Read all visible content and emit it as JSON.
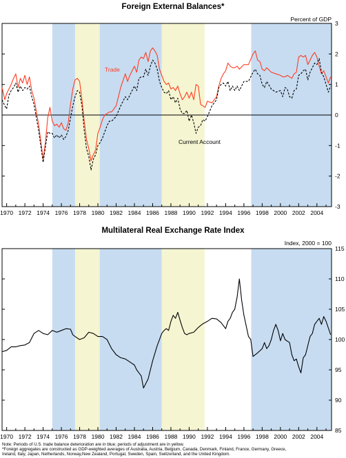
{
  "colors": {
    "blue_shade": "#c7dcf1",
    "yellow_shade": "#f5f5d2",
    "trade": "#ff3b1f",
    "current_account": "#000000",
    "index": "#000000"
  },
  "shading": [
    {
      "start": 1975.0,
      "end": 1977.5,
      "kind": "blue"
    },
    {
      "start": 1977.5,
      "end": 1980.2,
      "kind": "yellow"
    },
    {
      "start": 1980.2,
      "end": 1987.0,
      "kind": "blue"
    },
    {
      "start": 1987.0,
      "end": 1991.7,
      "kind": "yellow"
    },
    {
      "start": 1996.8,
      "end": 2005.6,
      "kind": "blue"
    }
  ],
  "chart_data": [
    {
      "type": "line",
      "title": "Foreign External Balances*",
      "ylabel": "Percent of GDP",
      "xlim": [
        1969.5,
        2005.6
      ],
      "ylim": [
        -3,
        3
      ],
      "yticks": [
        "-3",
        "-2",
        "-1",
        "0",
        "1",
        "2",
        "3"
      ],
      "xticks": [
        "1970",
        "1972",
        "1974",
        "1976",
        "1978",
        "1980",
        "1982",
        "1984",
        "1986",
        "1988",
        "1990",
        "1992",
        "1994",
        "1996",
        "1998",
        "2000",
        "2002",
        "2004"
      ],
      "series": [
        {
          "name": "Trade",
          "x": [
            1969.5,
            1969.8,
            1970.0,
            1970.25,
            1970.5,
            1970.75,
            1971.0,
            1971.25,
            1971.5,
            1971.75,
            1972.0,
            1972.25,
            1972.5,
            1972.75,
            1973.0,
            1973.5,
            1974.0,
            1974.25,
            1974.5,
            1974.75,
            1975.0,
            1975.25,
            1975.5,
            1975.75,
            1976.0,
            1976.25,
            1976.5,
            1976.75,
            1977.0,
            1977.25,
            1977.5,
            1977.75,
            1978.0,
            1978.25,
            1978.5,
            1978.75,
            1979.0,
            1979.25,
            1979.5,
            1979.75,
            1980.0,
            1980.25,
            1980.5,
            1980.75,
            1981.0,
            1981.25,
            1981.5,
            1982.0,
            1982.5,
            1983.0,
            1983.25,
            1983.5,
            1984.0,
            1984.25,
            1984.5,
            1984.75,
            1985.0,
            1985.25,
            1985.5,
            1985.75,
            1986.0,
            1986.25,
            1986.5,
            1986.75,
            1987.0,
            1987.25,
            1987.5,
            1987.75,
            1988.0,
            1988.25,
            1988.5,
            1988.75,
            1989.0,
            1989.25,
            1989.5,
            1989.75,
            1990.0,
            1990.25,
            1990.5,
            1990.75,
            1991.0,
            1991.25,
            1991.5,
            1991.75,
            1992.0,
            1992.5,
            1993.0,
            1993.25,
            1993.5,
            1993.75,
            1994.0,
            1994.25,
            1994.5,
            1994.75,
            1995.0,
            1995.25,
            1995.5,
            1996.0,
            1996.5,
            1997.0,
            1997.25,
            1997.5,
            1997.75,
            1998.0,
            1998.25,
            1998.5,
            1999.0,
            1999.5,
            2000.0,
            2000.25,
            2000.5,
            2000.75,
            2001.0,
            2001.25,
            2001.5,
            2001.75,
            2002.0,
            2002.25,
            2002.5,
            2002.75,
            2003.0,
            2003.25,
            2003.5,
            2003.75,
            2004.0,
            2004.25,
            2004.5,
            2004.75,
            2005.0,
            2005.25,
            2005.5
          ],
          "values": [
            0.9,
            0.5,
            0.7,
            0.85,
            1.0,
            1.2,
            1.35,
            0.9,
            1.2,
            1.05,
            1.3,
            1.0,
            1.25,
            0.8,
            0.55,
            -0.3,
            -1.45,
            -0.9,
            -0.1,
            0.25,
            -0.2,
            -0.35,
            -0.3,
            -0.4,
            -0.25,
            -0.45,
            -0.5,
            -0.25,
            0.35,
            0.85,
            1.15,
            1.2,
            1.1,
            0.5,
            -0.2,
            -0.8,
            -1.1,
            -1.5,
            -1.3,
            -1.15,
            -0.6,
            -0.4,
            -0.15,
            0.0,
            0.05,
            0.1,
            0.1,
            0.3,
            0.9,
            1.35,
            1.1,
            1.3,
            1.6,
            1.4,
            1.8,
            1.9,
            1.85,
            2.05,
            1.75,
            2.1,
            2.2,
            2.1,
            1.95,
            1.5,
            1.3,
            1.1,
            1.0,
            1.05,
            0.85,
            0.9,
            0.8,
            0.95,
            0.7,
            0.5,
            0.6,
            0.75,
            0.55,
            0.75,
            0.5,
            1.0,
            0.95,
            0.35,
            0.3,
            0.25,
            0.45,
            0.4,
            0.6,
            0.95,
            1.2,
            1.35,
            1.45,
            1.7,
            1.6,
            1.55,
            1.55,
            1.6,
            1.5,
            1.65,
            1.65,
            2.0,
            2.1,
            1.8,
            1.75,
            1.5,
            1.45,
            1.55,
            1.4,
            1.35,
            1.3,
            1.25,
            1.25,
            1.3,
            1.25,
            1.2,
            1.35,
            1.4,
            1.9,
            1.95,
            1.9,
            1.95,
            1.65,
            1.8,
            1.95,
            2.05,
            1.9,
            1.6,
            1.35,
            1.45,
            1.25,
            1.05,
            1.25
          ]
        },
        {
          "name": "Current Account",
          "x": [
            1969.5,
            1969.8,
            1970.0,
            1970.25,
            1970.5,
            1970.75,
            1971.0,
            1971.25,
            1971.5,
            1971.75,
            1972.0,
            1972.25,
            1972.5,
            1972.75,
            1973.0,
            1973.5,
            1974.0,
            1974.25,
            1974.5,
            1974.75,
            1975.0,
            1975.25,
            1975.5,
            1975.75,
            1976.0,
            1976.25,
            1976.5,
            1976.75,
            1977.0,
            1977.25,
            1977.5,
            1977.75,
            1978.0,
            1978.25,
            1978.5,
            1978.75,
            1979.0,
            1979.25,
            1979.5,
            1979.75,
            1980.0,
            1980.25,
            1980.5,
            1980.75,
            1981.0,
            1981.25,
            1981.5,
            1982.0,
            1982.5,
            1983.0,
            1983.25,
            1983.5,
            1984.0,
            1984.25,
            1984.5,
            1984.75,
            1985.0,
            1985.25,
            1985.5,
            1985.75,
            1986.0,
            1986.25,
            1986.5,
            1986.75,
            1987.0,
            1987.25,
            1987.5,
            1987.75,
            1988.0,
            1988.25,
            1988.5,
            1988.75,
            1989.0,
            1989.25,
            1989.5,
            1989.75,
            1990.0,
            1990.25,
            1990.5,
            1990.75,
            1991.0,
            1991.25,
            1991.5,
            1991.75,
            1992.0,
            1992.5,
            1993.0,
            1993.25,
            1993.5,
            1993.75,
            1994.0,
            1994.25,
            1994.5,
            1994.75,
            1995.0,
            1995.25,
            1995.5,
            1996.0,
            1996.5,
            1997.0,
            1997.25,
            1997.5,
            1997.75,
            1998.0,
            1998.25,
            1998.5,
            1999.0,
            1999.5,
            2000.0,
            2000.25,
            2000.5,
            2000.75,
            2001.0,
            2001.25,
            2001.5,
            2001.75,
            2002.0,
            2002.25,
            2002.5,
            2002.75,
            2003.0,
            2003.25,
            2003.5,
            2003.75,
            2004.0,
            2004.25,
            2004.5,
            2004.75,
            2005.0,
            2005.25,
            2005.5
          ],
          "values": [
            0.5,
            0.3,
            0.2,
            0.65,
            0.8,
            0.9,
            1.05,
            0.75,
            0.95,
            0.8,
            0.9,
            0.85,
            0.95,
            0.6,
            0.35,
            -0.5,
            -1.55,
            -1.05,
            -0.55,
            -0.6,
            -0.6,
            -0.75,
            -0.65,
            -0.75,
            -0.65,
            -0.8,
            -0.7,
            -0.5,
            -0.1,
            0.3,
            0.6,
            0.8,
            0.75,
            0.3,
            -0.5,
            -1.1,
            -1.35,
            -1.8,
            -1.45,
            -1.3,
            -1.0,
            -0.9,
            -0.75,
            -0.55,
            -0.35,
            -0.2,
            -0.2,
            -0.05,
            0.3,
            0.6,
            0.5,
            0.65,
            0.95,
            0.8,
            1.2,
            1.25,
            1.25,
            1.5,
            1.3,
            1.6,
            1.8,
            1.7,
            1.5,
            1.1,
            0.9,
            0.75,
            0.7,
            0.8,
            0.5,
            0.6,
            0.4,
            0.55,
            0.2,
            0.05,
            0.05,
            0.15,
            -0.2,
            0.0,
            -0.25,
            -0.6,
            -0.4,
            -0.35,
            -0.15,
            -0.2,
            -0.05,
            0.3,
            0.5,
            0.9,
            1.0,
            1.05,
            0.95,
            1.1,
            0.8,
            0.95,
            0.8,
            0.95,
            0.8,
            1.1,
            1.1,
            1.4,
            1.5,
            1.35,
            1.3,
            1.0,
            0.9,
            1.1,
            0.85,
            0.75,
            0.8,
            0.6,
            0.9,
            0.85,
            0.6,
            0.55,
            0.8,
            0.85,
            1.3,
            1.35,
            1.45,
            1.5,
            1.15,
            1.4,
            1.55,
            1.7,
            1.65,
            1.85,
            1.4,
            1.25,
            1.0,
            0.75,
            0.95
          ]
        }
      ],
      "annotations": [
        "Trade",
        "Current Account"
      ]
    },
    {
      "type": "line",
      "title": "Multilateral Real Exchange Rate Index",
      "ylabel": "Index, 2000 = 100",
      "xlim": [
        1969.5,
        2005.6
      ],
      "ylim": [
        85,
        115
      ],
      "yticks": [
        "85",
        "90",
        "95",
        "100",
        "105",
        "110",
        "115"
      ],
      "xticks": [
        "1970",
        "1972",
        "1974",
        "1976",
        "1978",
        "1980",
        "1982",
        "1984",
        "1986",
        "1988",
        "1990",
        "1992",
        "1994",
        "1996",
        "1998",
        "2000",
        "2002",
        "2004"
      ],
      "series": [
        {
          "name": "",
          "x": [
            1969.5,
            1970.0,
            1970.5,
            1971.0,
            1971.5,
            1972.0,
            1972.5,
            1973.0,
            1973.5,
            1974.0,
            1974.5,
            1975.0,
            1975.5,
            1976.0,
            1976.5,
            1977.0,
            1977.25,
            1977.5,
            1978.0,
            1978.5,
            1979.0,
            1979.5,
            1980.0,
            1980.5,
            1981.0,
            1981.5,
            1982.0,
            1982.5,
            1983.0,
            1983.5,
            1984.0,
            1984.25,
            1984.5,
            1984.75,
            1985.0,
            1985.5,
            1986.0,
            1986.5,
            1987.0,
            1987.25,
            1987.5,
            1987.75,
            1988.0,
            1988.25,
            1988.5,
            1988.75,
            1989.0,
            1989.25,
            1989.5,
            1989.75,
            1990.0,
            1990.5,
            1991.0,
            1991.5,
            1992.0,
            1992.5,
            1993.0,
            1993.5,
            1994.0,
            1994.25,
            1994.5,
            1994.75,
            1995.0,
            1995.25,
            1995.5,
            1995.75,
            1996.0,
            1996.5,
            1996.75,
            1997.0,
            1997.5,
            1998.0,
            1998.25,
            1998.5,
            1998.75,
            1999.0,
            1999.25,
            1999.5,
            1999.75,
            2000.0,
            2000.25,
            2000.5,
            2001.0,
            2001.25,
            2001.5,
            2001.75,
            2002.0,
            2002.25,
            2002.5,
            2002.75,
            2003.0,
            2003.25,
            2003.5,
            2003.75,
            2004.0,
            2004.25,
            2004.5,
            2004.75,
            2005.0,
            2005.5
          ],
          "values": [
            98.0,
            98.2,
            98.8,
            98.8,
            99.0,
            99.1,
            99.5,
            101.0,
            101.5,
            101.0,
            100.8,
            101.5,
            101.2,
            101.5,
            101.8,
            101.7,
            100.8,
            100.5,
            100.0,
            100.3,
            101.2,
            101.0,
            100.5,
            100.5,
            100.0,
            98.5,
            97.5,
            97.0,
            96.8,
            96.3,
            95.8,
            95.0,
            94.5,
            94.0,
            92.0,
            93.5,
            96.5,
            99.0,
            101.0,
            101.5,
            101.8,
            101.5,
            103.0,
            104.0,
            103.5,
            104.5,
            103.2,
            102.0,
            101.0,
            100.8,
            101.0,
            101.2,
            102.0,
            102.6,
            103.0,
            103.5,
            103.4,
            102.8,
            101.8,
            103.0,
            103.5,
            104.5,
            105.0,
            107.0,
            110.0,
            106.5,
            104.0,
            100.5,
            100.0,
            97.2,
            97.8,
            98.5,
            99.5,
            98.5,
            99.0,
            100.0,
            101.5,
            102.5,
            101.5,
            99.8,
            101.0,
            100.0,
            99.5,
            97.5,
            96.5,
            96.8,
            95.5,
            94.5,
            97.0,
            97.5,
            99.0,
            100.5,
            101.0,
            102.5,
            103.0,
            103.5,
            102.5,
            103.8,
            103.0,
            100.8
          ]
        }
      ]
    }
  ],
  "notes": [
    "Note:  Periods of U.S. trade balance deterioration are in blue; periods of adjustment are in yellow.",
    "*Foreign aggregates are constructed as GDP-weighted averages of Australia, Austria, Belgium, Canada, Denmark, Finland, France, Germany, Greece,",
    "Ireland, Italy, Japan, Netherlands, Norway,New Zealand, Portugal, Sweden, Spain, Switzerland, and the United Kingdom."
  ]
}
